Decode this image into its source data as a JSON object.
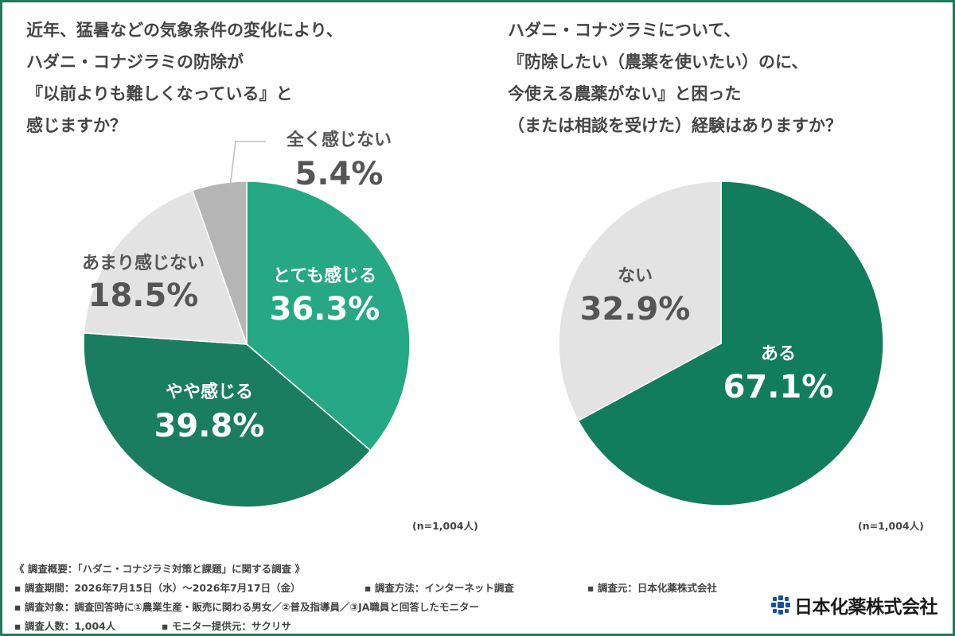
{
  "left": {
    "question_lines": [
      "近年、猛暑などの気象条件の変化により、",
      "ハダニ・コナジラミの防除が",
      "『以前よりも難しくなっている』と",
      "感じますか？"
    ],
    "n_note": "(n=1,004人)"
  },
  "right": {
    "question_lines": [
      "ハダニ・コナジラミについて、",
      "『防除したい（農薬を使いたい）のに、",
      "今使える農薬がない』と困った",
      "（または相談を受けた）経験はありますか？"
    ],
    "n_note": "(n=1,004人)"
  },
  "chart_data": [
    {
      "type": "pie",
      "labels": [
        "とても感じる",
        "やや感じる",
        "あまり感じない",
        "全く感じない"
      ],
      "values": [
        36.3,
        39.8,
        18.5,
        5.4
      ],
      "display_values": [
        "36.3%",
        "39.8%",
        "18.5%",
        "5.4%"
      ],
      "colors": [
        "#27a884",
        "#1a7d5f",
        "#e3e3e3",
        "#b5b5b5"
      ],
      "start": "12 o'clock, clockwise"
    },
    {
      "type": "pie",
      "labels": [
        "ある",
        "ない"
      ],
      "values": [
        67.1,
        32.9
      ],
      "display_values": [
        "67.1%",
        "32.9%"
      ],
      "colors": [
        "#127d5c",
        "#e3e3e3"
      ],
      "start": "12 o'clock, clockwise"
    }
  ],
  "footer": {
    "overview": "《 調査概要：「ハダニ・コナジラミ対策と課題」に関する調査 》",
    "period": "▪ 調査期間：2026年7月15日（水）〜2026年7月17日（金）",
    "method": "▪ 調査方法：インターネット調査",
    "source": "▪ 調査元：日本化薬株式会社",
    "target": "▪ 調査対象：調査回答時に①農業生産・販売に関わる男女／②普及指導員／③JA職員と回答したモニター",
    "count": "▪ 調査人数：1,004人",
    "provider": "▪ モニター提供元：サクリサ"
  },
  "logo": {
    "text": "日本化薬株式会社",
    "color": "#1c4fa0"
  }
}
